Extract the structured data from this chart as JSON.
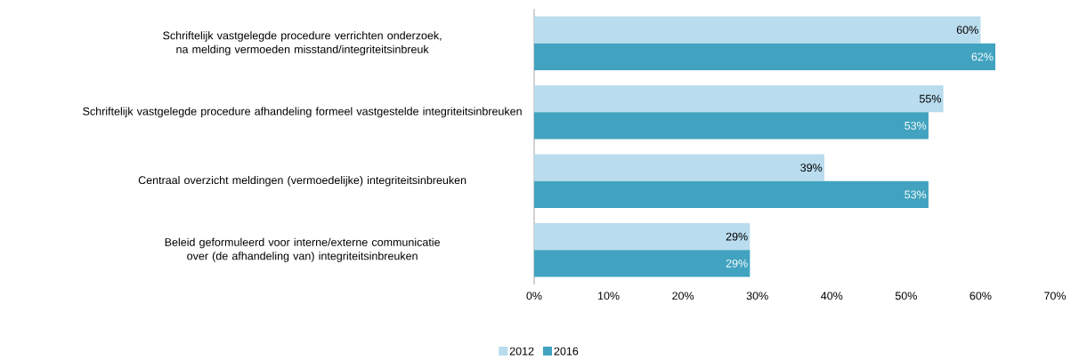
{
  "chart_data": {
    "type": "bar",
    "orientation": "horizontal",
    "categories": [
      "Schriftelijk vastgelegde procedure verrichten onderzoek, na melding vermoeden misstand/integriteitsinbreuk",
      "Schriftelijk vastgelegde procedure afhandeling formeel vastgestelde integriteitsinbreuken",
      "Centraal overzicht meldingen (vermoedelijke) integriteitsinbreuken",
      "Beleid geformuleerd voor interne/externe communicatie over (de afhandeling van) integriteitsinbreuken"
    ],
    "series": [
      {
        "name": "2012",
        "color": "#b9dcee",
        "values": [
          60,
          55,
          39,
          29
        ],
        "value_labels": [
          "60%",
          "55%",
          "39%",
          "29%"
        ]
      },
      {
        "name": "2016",
        "color": "#41a3bf",
        "values": [
          62,
          53,
          53,
          29
        ],
        "value_labels": [
          "62%",
          "53%",
          "53%",
          "29%"
        ]
      }
    ],
    "xlim": [
      0,
      70
    ],
    "xticks": [
      {
        "value": 0,
        "label": "0%"
      },
      {
        "value": 10,
        "label": "10%"
      },
      {
        "value": 20,
        "label": "20%"
      },
      {
        "value": 30,
        "label": "30%"
      },
      {
        "value": 40,
        "label": "40%"
      },
      {
        "value": 50,
        "label": "50%"
      },
      {
        "value": 60,
        "label": "60%"
      },
      {
        "value": 70,
        "label": "70%"
      }
    ],
    "grid": false,
    "legend": "bottom"
  }
}
